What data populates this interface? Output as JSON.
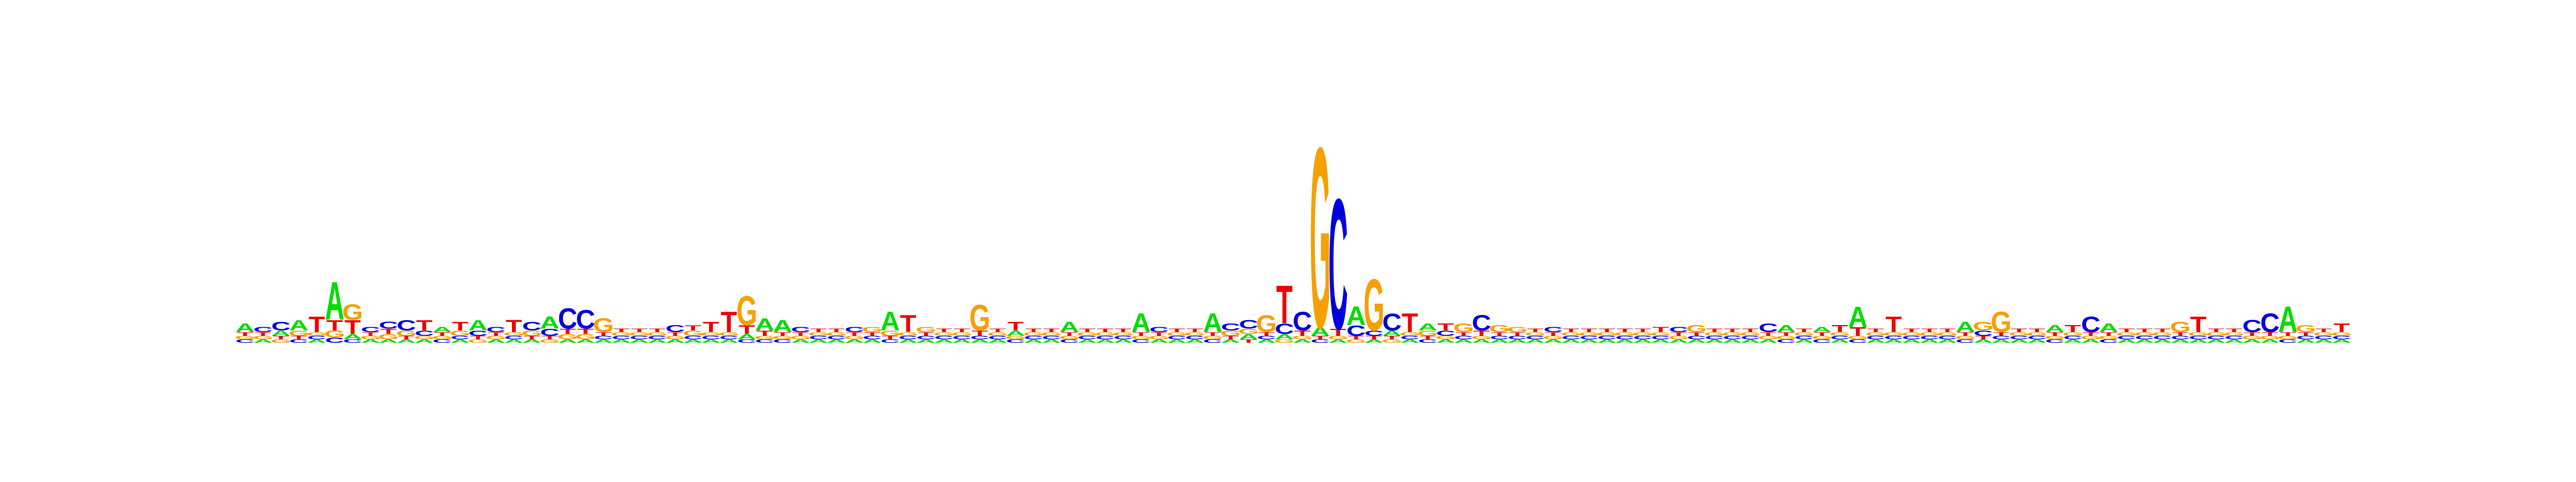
{
  "figure": {
    "type": "sequence_logo",
    "alphabet": [
      "A",
      "C",
      "G",
      "T"
    ],
    "colors": {
      "A": "#00dd00",
      "C": "#0000dd",
      "G": "#f5a000",
      "T": "#ee0000"
    },
    "y_max_bits": 2
  },
  "positions": [
    {
      "A": 0.05,
      "C": 0.02,
      "G": 0.02,
      "T": 0.02
    },
    {
      "A": 0.02,
      "C": 0.03,
      "G": 0.02,
      "T": 0.02
    },
    {
      "A": 0.03,
      "C": 0.05,
      "G": 0.02,
      "T": 0.02
    },
    {
      "A": 0.06,
      "C": 0.02,
      "G": 0.03,
      "T": 0.02
    },
    {
      "A": 0.02,
      "C": 0.02,
      "G": 0.02,
      "T": 0.09
    },
    {
      "A": 0.22,
      "C": 0.03,
      "G": 0.04,
      "T": 0.06
    },
    {
      "A": 0.03,
      "C": 0.02,
      "G": 0.09,
      "T": 0.08
    },
    {
      "A": 0.02,
      "C": 0.03,
      "G": 0.02,
      "T": 0.02
    },
    {
      "A": 0.02,
      "C": 0.04,
      "G": 0.03,
      "T": 0.03
    },
    {
      "A": 0.02,
      "C": 0.06,
      "G": 0.03,
      "T": 0.02
    },
    {
      "A": 0.02,
      "C": 0.03,
      "G": 0.02,
      "T": 0.06
    },
    {
      "A": 0.03,
      "C": 0.02,
      "G": 0.02,
      "T": 0.02
    },
    {
      "A": 0.02,
      "C": 0.02,
      "G": 0.03,
      "T": 0.05
    },
    {
      "A": 0.06,
      "C": 0.03,
      "G": 0.02,
      "T": 0.02
    },
    {
      "A": 0.02,
      "C": 0.03,
      "G": 0.02,
      "T": 0.02
    },
    {
      "A": 0.02,
      "C": 0.02,
      "G": 0.02,
      "T": 0.07
    },
    {
      "A": 0.02,
      "C": 0.05,
      "G": 0.03,
      "T": 0.02
    },
    {
      "A": 0.07,
      "C": 0.04,
      "G": 0.02,
      "T": 0.02
    },
    {
      "A": 0.02,
      "C": 0.12,
      "G": 0.03,
      "T": 0.03
    },
    {
      "A": 0.02,
      "C": 0.11,
      "G": 0.03,
      "T": 0.03
    },
    {
      "A": 0.02,
      "C": 0.02,
      "G": 0.08,
      "T": 0.02
    },
    {
      "A": 0.02,
      "C": 0.02,
      "G": 0.02,
      "T": 0.02
    },
    {
      "A": 0.02,
      "C": 0.02,
      "G": 0.02,
      "T": 0.02
    },
    {
      "A": 0.02,
      "C": 0.02,
      "G": 0.02,
      "T": 0.02
    },
    {
      "A": 0.02,
      "C": 0.04,
      "G": 0.02,
      "T": 0.02
    },
    {
      "A": 0.02,
      "C": 0.02,
      "G": 0.03,
      "T": 0.03
    },
    {
      "A": 0.02,
      "C": 0.02,
      "G": 0.02,
      "T": 0.06
    },
    {
      "A": 0.02,
      "C": 0.02,
      "G": 0.02,
      "T": 0.12
    },
    {
      "A": 0.03,
      "C": 0.02,
      "G": 0.17,
      "T": 0.05
    },
    {
      "A": 0.07,
      "C": 0.02,
      "G": 0.02,
      "T": 0.03
    },
    {
      "A": 0.07,
      "C": 0.02,
      "G": 0.02,
      "T": 0.02
    },
    {
      "A": 0.02,
      "C": 0.03,
      "G": 0.02,
      "T": 0.02
    },
    {
      "A": 0.02,
      "C": 0.02,
      "G": 0.02,
      "T": 0.02
    },
    {
      "A": 0.02,
      "C": 0.02,
      "G": 0.02,
      "T": 0.02
    },
    {
      "A": 0.02,
      "C": 0.03,
      "G": 0.02,
      "T": 0.02
    },
    {
      "A": 0.02,
      "C": 0.02,
      "G": 0.03,
      "T": 0.02
    },
    {
      "A": 0.11,
      "C": 0.02,
      "G": 0.03,
      "T": 0.02
    },
    {
      "A": 0.02,
      "C": 0.02,
      "G": 0.02,
      "T": 0.1
    },
    {
      "A": 0.02,
      "C": 0.02,
      "G": 0.03,
      "T": 0.02
    },
    {
      "A": 0.02,
      "C": 0.02,
      "G": 0.02,
      "T": 0.02
    },
    {
      "A": 0.02,
      "C": 0.02,
      "G": 0.02,
      "T": 0.02
    },
    {
      "A": 0.02,
      "C": 0.02,
      "G": 0.15,
      "T": 0.03
    },
    {
      "A": 0.02,
      "C": 0.02,
      "G": 0.02,
      "T": 0.02
    },
    {
      "A": 0.03,
      "C": 0.02,
      "G": 0.02,
      "T": 0.05
    },
    {
      "A": 0.02,
      "C": 0.02,
      "G": 0.02,
      "T": 0.02
    },
    {
      "A": 0.02,
      "C": 0.02,
      "G": 0.02,
      "T": 0.02
    },
    {
      "A": 0.06,
      "C": 0.02,
      "G": 0.02,
      "T": 0.02
    },
    {
      "A": 0.02,
      "C": 0.02,
      "G": 0.02,
      "T": 0.02
    },
    {
      "A": 0.02,
      "C": 0.02,
      "G": 0.02,
      "T": 0.02
    },
    {
      "A": 0.02,
      "C": 0.02,
      "G": 0.02,
      "T": 0.02
    },
    {
      "A": 0.11,
      "C": 0.02,
      "G": 0.02,
      "T": 0.02
    },
    {
      "A": 0.02,
      "C": 0.03,
      "G": 0.02,
      "T": 0.02
    },
    {
      "A": 0.02,
      "C": 0.02,
      "G": 0.02,
      "T": 0.02
    },
    {
      "A": 0.02,
      "C": 0.02,
      "G": 0.02,
      "T": 0.02
    },
    {
      "A": 0.11,
      "C": 0.02,
      "G": 0.02,
      "T": 0.02
    },
    {
      "A": 0.02,
      "C": 0.04,
      "G": 0.03,
      "T": 0.02
    },
    {
      "A": 0.03,
      "C": 0.05,
      "G": 0.03,
      "T": 0.02
    },
    {
      "A": 0.02,
      "C": 0.02,
      "G": 0.1,
      "T": 0.02
    },
    {
      "A": 0.03,
      "C": 0.06,
      "G": 0.02,
      "T": 0.22
    },
    {
      "A": 0.02,
      "C": 0.11,
      "G": 0.02,
      "T": 0.03
    },
    {
      "A": 0.05,
      "C": 0.02,
      "G": 1.05,
      "T": 0.02
    },
    {
      "A": 0.02,
      "C": 0.76,
      "G": 0.02,
      "T": 0.04
    },
    {
      "A": 0.11,
      "C": 0.06,
      "G": 0.02,
      "T": 0.02
    },
    {
      "A": 0.02,
      "C": 0.03,
      "G": 0.3,
      "T": 0.02
    },
    {
      "A": 0.03,
      "C": 0.1,
      "G": 0.02,
      "T": 0.02
    },
    {
      "A": 0.02,
      "C": 0.02,
      "G": 0.02,
      "T": 0.11
    },
    {
      "A": 0.04,
      "C": 0.02,
      "G": 0.03,
      "T": 0.02
    },
    {
      "A": 0.02,
      "C": 0.03,
      "G": 0.02,
      "T": 0.04
    },
    {
      "A": 0.02,
      "C": 0.02,
      "G": 0.05,
      "T": 0.02
    },
    {
      "A": 0.02,
      "C": 0.09,
      "G": 0.02,
      "T": 0.03
    },
    {
      "A": 0.02,
      "C": 0.02,
      "G": 0.04,
      "T": 0.02
    },
    {
      "A": 0.02,
      "C": 0.02,
      "G": 0.03,
      "T": 0.02
    },
    {
      "A": 0.02,
      "C": 0.02,
      "G": 0.02,
      "T": 0.02
    },
    {
      "A": 0.02,
      "C": 0.03,
      "G": 0.02,
      "T": 0.02
    },
    {
      "A": 0.02,
      "C": 0.02,
      "G": 0.02,
      "T": 0.02
    },
    {
      "A": 0.02,
      "C": 0.02,
      "G": 0.02,
      "T": 0.02
    },
    {
      "A": 0.02,
      "C": 0.02,
      "G": 0.02,
      "T": 0.02
    },
    {
      "A": 0.02,
      "C": 0.02,
      "G": 0.02,
      "T": 0.02
    },
    {
      "A": 0.02,
      "C": 0.02,
      "G": 0.02,
      "T": 0.02
    },
    {
      "A": 0.02,
      "C": 0.02,
      "G": 0.02,
      "T": 0.03
    },
    {
      "A": 0.02,
      "C": 0.03,
      "G": 0.02,
      "T": 0.02
    },
    {
      "A": 0.02,
      "C": 0.02,
      "G": 0.04,
      "T": 0.02
    },
    {
      "A": 0.02,
      "C": 0.02,
      "G": 0.02,
      "T": 0.02
    },
    {
      "A": 0.02,
      "C": 0.02,
      "G": 0.02,
      "T": 0.02
    },
    {
      "A": 0.02,
      "C": 0.02,
      "G": 0.02,
      "T": 0.02
    },
    {
      "A": 0.02,
      "C": 0.05,
      "G": 0.02,
      "T": 0.02
    },
    {
      "A": 0.04,
      "C": 0.02,
      "G": 0.02,
      "T": 0.02
    },
    {
      "A": 0.02,
      "C": 0.02,
      "G": 0.02,
      "T": 0.02
    },
    {
      "A": 0.03,
      "C": 0.02,
      "G": 0.02,
      "T": 0.02
    },
    {
      "A": 0.02,
      "C": 0.02,
      "G": 0.02,
      "T": 0.04
    },
    {
      "A": 0.12,
      "C": 0.02,
      "G": 0.02,
      "T": 0.05
    },
    {
      "A": 0.02,
      "C": 0.02,
      "G": 0.02,
      "T": 0.02
    },
    {
      "A": 0.02,
      "C": 0.02,
      "G": 0.02,
      "T": 0.09
    },
    {
      "A": 0.02,
      "C": 0.02,
      "G": 0.02,
      "T": 0.02
    },
    {
      "A": 0.02,
      "C": 0.02,
      "G": 0.02,
      "T": 0.02
    },
    {
      "A": 0.02,
      "C": 0.02,
      "G": 0.02,
      "T": 0.02
    },
    {
      "A": 0.06,
      "C": 0.02,
      "G": 0.02,
      "T": 0.02
    },
    {
      "A": 0.02,
      "C": 0.03,
      "G": 0.05,
      "T": 0.02
    },
    {
      "A": 0.02,
      "C": 0.02,
      "G": 0.12,
      "T": 0.02
    },
    {
      "A": 0.02,
      "C": 0.02,
      "G": 0.02,
      "T": 0.02
    },
    {
      "A": 0.02,
      "C": 0.02,
      "G": 0.02,
      "T": 0.02
    },
    {
      "A": 0.04,
      "C": 0.02,
      "G": 0.02,
      "T": 0.02
    },
    {
      "A": 0.02,
      "C": 0.02,
      "G": 0.02,
      "T": 0.04
    },
    {
      "A": 0.02,
      "C": 0.09,
      "G": 0.02,
      "T": 0.02
    },
    {
      "A": 0.05,
      "C": 0.02,
      "G": 0.02,
      "T": 0.02
    },
    {
      "A": 0.02,
      "C": 0.02,
      "G": 0.02,
      "T": 0.02
    },
    {
      "A": 0.02,
      "C": 0.02,
      "G": 0.02,
      "T": 0.02
    },
    {
      "A": 0.02,
      "C": 0.02,
      "G": 0.02,
      "T": 0.02
    },
    {
      "A": 0.02,
      "C": 0.02,
      "G": 0.06,
      "T": 0.02
    },
    {
      "A": 0.02,
      "C": 0.02,
      "G": 0.02,
      "T": 0.09
    },
    {
      "A": 0.02,
      "C": 0.02,
      "G": 0.02,
      "T": 0.02
    },
    {
      "A": 0.02,
      "C": 0.02,
      "G": 0.02,
      "T": 0.02
    },
    {
      "A": 0.02,
      "C": 0.07,
      "G": 0.02,
      "T": 0.02
    },
    {
      "A": 0.02,
      "C": 0.11,
      "G": 0.02,
      "T": 0.02
    },
    {
      "A": 0.15,
      "C": 0.02,
      "G": 0.02,
      "T": 0.02
    },
    {
      "A": 0.02,
      "C": 0.02,
      "G": 0.04,
      "T": 0.02
    },
    {
      "A": 0.02,
      "C": 0.02,
      "G": 0.02,
      "T": 0.02
    },
    {
      "A": 0.02,
      "C": 0.02,
      "G": 0.02,
      "T": 0.05
    }
  ]
}
